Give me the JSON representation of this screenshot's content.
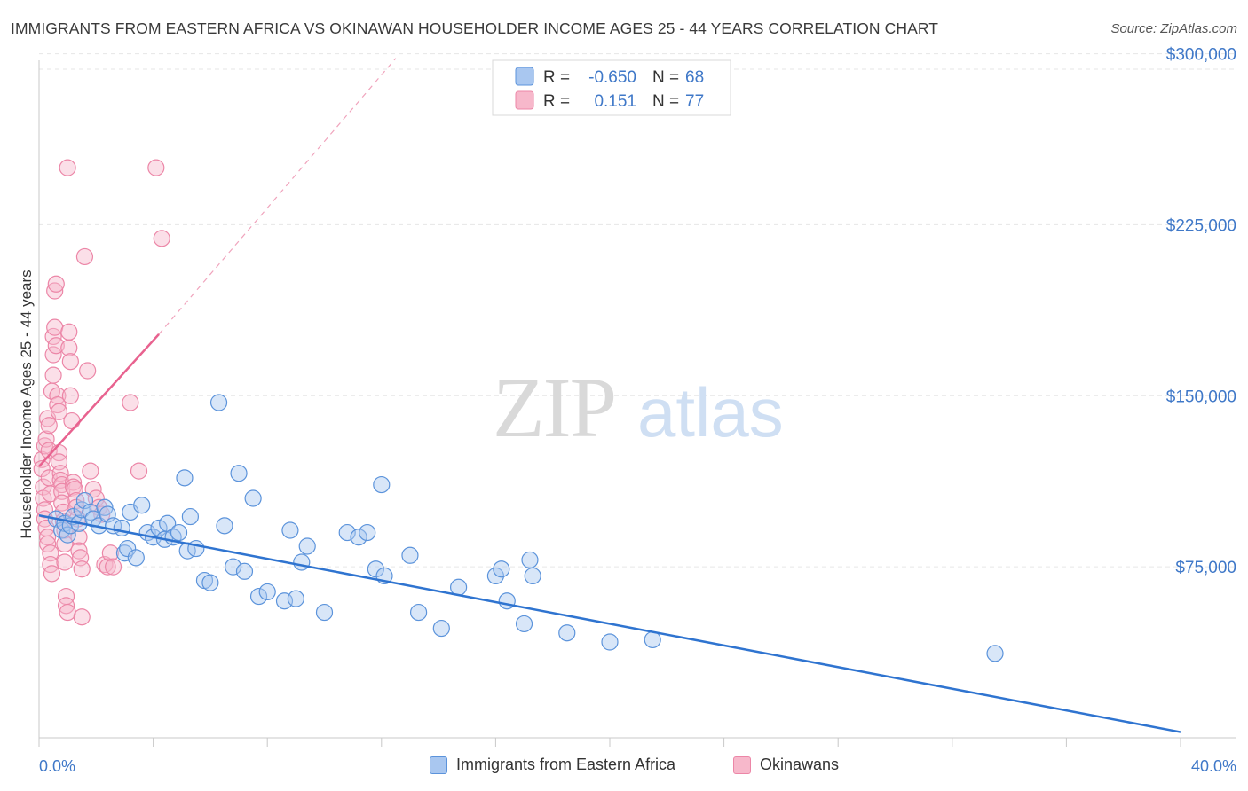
{
  "header": {
    "title": "IMMIGRANTS FROM EASTERN AFRICA VS OKINAWAN HOUSEHOLDER INCOME AGES 25 - 44 YEARS CORRELATION CHART",
    "source": "Source: ZipAtlas.com"
  },
  "watermark": {
    "zip": "ZIP",
    "atlas": "atlas"
  },
  "legend": {
    "rows": [
      {
        "r_label": "R =",
        "r_value": "-0.650",
        "n_label": "N =",
        "n_value": "68"
      },
      {
        "r_label": "R =",
        "r_value": "0.151",
        "n_label": "N =",
        "n_value": "77"
      }
    ]
  },
  "bottom_legend": {
    "series_a": "Immigrants from Eastern Africa",
    "series_b": "Okinawans"
  },
  "colors": {
    "series_a_fill": "#a9c7f0",
    "series_a_stroke": "#5b93db",
    "series_a_line": "#2f74d0",
    "series_b_fill": "#f7b8cb",
    "series_b_stroke": "#ec86a7",
    "series_b_line": "#e8628f",
    "tick_text": "#3f78c8",
    "grid": "#e6e6e6"
  },
  "chart_data": {
    "type": "scatter",
    "title": "IMMIGRANTS FROM EASTERN AFRICA VS OKINAWAN HOUSEHOLDER INCOME AGES 25 - 44 YEARS CORRELATION CHART",
    "xlabel": "",
    "ylabel": "Householder Income Ages 25 - 44 years",
    "xlim": [
      0,
      40
    ],
    "ylim": [
      0,
      315000
    ],
    "x_tick_labels": [
      "0.0%",
      "40.0%"
    ],
    "y_ticks": [
      {
        "value": 75000,
        "label": "$75,000"
      },
      {
        "value": 150000,
        "label": "$150,000"
      },
      {
        "value": 225000,
        "label": "$225,000"
      },
      {
        "value": 300000,
        "label": "$300,000"
      }
    ],
    "grid": true,
    "legend_position": "top-center",
    "series": [
      {
        "name": "Immigrants from Eastern Africa",
        "r": -0.65,
        "n": 68,
        "trend": {
          "x": [
            0,
            40
          ],
          "y": [
            97500,
            2500
          ],
          "style": "solid"
        },
        "points": [
          [
            0.6,
            96000
          ],
          [
            0.8,
            91000
          ],
          [
            0.9,
            94000
          ],
          [
            1.0,
            89000
          ],
          [
            1.1,
            93000
          ],
          [
            1.2,
            97000
          ],
          [
            1.4,
            94000
          ],
          [
            1.5,
            100000
          ],
          [
            1.6,
            104000
          ],
          [
            1.8,
            99000
          ],
          [
            1.9,
            96000
          ],
          [
            2.1,
            93000
          ],
          [
            2.3,
            101000
          ],
          [
            2.4,
            98000
          ],
          [
            2.6,
            93000
          ],
          [
            2.9,
            92000
          ],
          [
            3.0,
            81000
          ],
          [
            3.1,
            83000
          ],
          [
            3.2,
            99000
          ],
          [
            3.4,
            79000
          ],
          [
            3.6,
            102000
          ],
          [
            3.8,
            90000
          ],
          [
            4.0,
            88000
          ],
          [
            4.2,
            92000
          ],
          [
            4.4,
            87000
          ],
          [
            4.5,
            94000
          ],
          [
            4.7,
            88000
          ],
          [
            4.9,
            90000
          ],
          [
            5.1,
            114000
          ],
          [
            5.2,
            82000
          ],
          [
            5.3,
            97000
          ],
          [
            5.5,
            83000
          ],
          [
            5.8,
            69000
          ],
          [
            6.0,
            68000
          ],
          [
            6.3,
            147000
          ],
          [
            6.5,
            93000
          ],
          [
            6.8,
            75000
          ],
          [
            7.0,
            116000
          ],
          [
            7.2,
            73000
          ],
          [
            7.5,
            105000
          ],
          [
            7.7,
            62000
          ],
          [
            8.0,
            64000
          ],
          [
            8.6,
            60000
          ],
          [
            8.8,
            91000
          ],
          [
            9.0,
            61000
          ],
          [
            9.2,
            77000
          ],
          [
            9.4,
            84000
          ],
          [
            10.0,
            55000
          ],
          [
            10.8,
            90000
          ],
          [
            11.2,
            88000
          ],
          [
            11.5,
            90000
          ],
          [
            11.8,
            74000
          ],
          [
            12.0,
            111000
          ],
          [
            12.1,
            71000
          ],
          [
            13.0,
            80000
          ],
          [
            13.3,
            55000
          ],
          [
            14.1,
            48000
          ],
          [
            14.7,
            66000
          ],
          [
            16.0,
            71000
          ],
          [
            16.2,
            74000
          ],
          [
            16.4,
            60000
          ],
          [
            17.0,
            50000
          ],
          [
            17.2,
            78000
          ],
          [
            17.3,
            71000
          ],
          [
            18.5,
            46000
          ],
          [
            20.0,
            42000
          ],
          [
            21.5,
            43000
          ],
          [
            33.5,
            37000
          ]
        ]
      },
      {
        "name": "Okinawans",
        "r": 0.151,
        "n": 77,
        "trend": {
          "x": [
            0,
            4.2
          ],
          "y": [
            119000,
            177000
          ],
          "style": "solid",
          "extended": {
            "x": [
              4.2,
              12.5
            ],
            "y": [
              177000,
              298000
            ],
            "style": "dashed"
          }
        },
        "points": [
          [
            0.1,
            122000
          ],
          [
            0.1,
            118000
          ],
          [
            0.15,
            110000
          ],
          [
            0.15,
            105000
          ],
          [
            0.2,
            100000
          ],
          [
            0.2,
            96000
          ],
          [
            0.2,
            128000
          ],
          [
            0.25,
            131000
          ],
          [
            0.25,
            92000
          ],
          [
            0.3,
            88000
          ],
          [
            0.3,
            85000
          ],
          [
            0.3,
            140000
          ],
          [
            0.35,
            137000
          ],
          [
            0.35,
            126000
          ],
          [
            0.35,
            114000
          ],
          [
            0.4,
            107000
          ],
          [
            0.4,
            81000
          ],
          [
            0.4,
            76000
          ],
          [
            0.45,
            72000
          ],
          [
            0.45,
            152000
          ],
          [
            0.5,
            159000
          ],
          [
            0.5,
            168000
          ],
          [
            0.5,
            176000
          ],
          [
            0.55,
            180000
          ],
          [
            0.55,
            196000
          ],
          [
            0.6,
            199000
          ],
          [
            0.6,
            172000
          ],
          [
            0.65,
            150000
          ],
          [
            0.65,
            146000
          ],
          [
            0.7,
            143000
          ],
          [
            0.7,
            125000
          ],
          [
            0.7,
            121000
          ],
          [
            0.75,
            116000
          ],
          [
            0.75,
            113000
          ],
          [
            0.8,
            111000
          ],
          [
            0.8,
            108000
          ],
          [
            0.8,
            103000
          ],
          [
            0.85,
            99000
          ],
          [
            0.85,
            95000
          ],
          [
            0.9,
            91000
          ],
          [
            0.9,
            85000
          ],
          [
            0.9,
            77000
          ],
          [
            0.95,
            62000
          ],
          [
            0.95,
            58000
          ],
          [
            1.0,
            55000
          ],
          [
            1.0,
            250000
          ],
          [
            1.05,
            178000
          ],
          [
            1.05,
            171000
          ],
          [
            1.1,
            165000
          ],
          [
            1.1,
            150000
          ],
          [
            1.15,
            139000
          ],
          [
            1.2,
            112000
          ],
          [
            1.2,
            110000
          ],
          [
            1.25,
            109000
          ],
          [
            1.3,
            104000
          ],
          [
            1.3,
            101000
          ],
          [
            1.35,
            96000
          ],
          [
            1.4,
            88000
          ],
          [
            1.4,
            82000
          ],
          [
            1.45,
            79000
          ],
          [
            1.5,
            74000
          ],
          [
            1.5,
            53000
          ],
          [
            1.6,
            211000
          ],
          [
            1.7,
            161000
          ],
          [
            1.8,
            117000
          ],
          [
            1.9,
            109000
          ],
          [
            2.0,
            105000
          ],
          [
            2.1,
            101000
          ],
          [
            2.2,
            98000
          ],
          [
            2.3,
            76000
          ],
          [
            2.4,
            75000
          ],
          [
            2.5,
            81000
          ],
          [
            2.6,
            75000
          ],
          [
            3.2,
            147000
          ],
          [
            3.5,
            117000
          ],
          [
            4.1,
            250000
          ],
          [
            4.3,
            219000
          ]
        ]
      }
    ]
  }
}
